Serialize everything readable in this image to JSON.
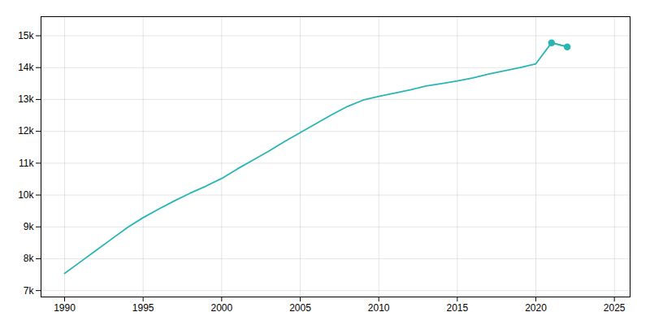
{
  "chart_data": {
    "type": "line",
    "x": [
      1990,
      1991,
      1992,
      1993,
      1994,
      1995,
      1996,
      1997,
      1998,
      1999,
      2000,
      2001,
      2002,
      2003,
      2004,
      2005,
      2006,
      2007,
      2008,
      2009,
      2010,
      2011,
      2012,
      2013,
      2014,
      2015,
      2016,
      2017,
      2018,
      2019,
      2020,
      2021,
      2022
    ],
    "series": [
      {
        "color": "#2ab5b5",
        "values": [
          7540,
          7900,
          8260,
          8620,
          8980,
          9290,
          9560,
          9820,
          10060,
          10280,
          10520,
          10820,
          11100,
          11380,
          11680,
          11960,
          12240,
          12520,
          12780,
          12980,
          13100,
          13200,
          13300,
          13420,
          13500,
          13580,
          13680,
          13800,
          13900,
          14000,
          14120,
          14780,
          14650
        ]
      },
      {
        "color": "#2ab5b5",
        "marker": "circle",
        "values": [
          null,
          null,
          null,
          null,
          null,
          null,
          null,
          null,
          null,
          null,
          null,
          null,
          null,
          null,
          null,
          null,
          null,
          null,
          null,
          null,
          null,
          null,
          null,
          null,
          null,
          null,
          null,
          null,
          null,
          null,
          null,
          14780,
          14650
        ]
      }
    ],
    "xlim": [
      1988.5,
      2026
    ],
    "ylim": [
      6800,
      15600
    ],
    "xticks": [
      1990,
      1995,
      2000,
      2005,
      2010,
      2015,
      2020,
      2025
    ],
    "yticks": [
      {
        "value": 7000,
        "label": "7k"
      },
      {
        "value": 8000,
        "label": "8k"
      },
      {
        "value": 9000,
        "label": "9k"
      },
      {
        "value": 10000,
        "label": "10k"
      },
      {
        "value": 11000,
        "label": "11k"
      },
      {
        "value": 12000,
        "label": "12k"
      },
      {
        "value": 13000,
        "label": "13k"
      },
      {
        "value": 14000,
        "label": "14k"
      },
      {
        "value": 15000,
        "label": "15k"
      }
    ],
    "grid": true
  }
}
